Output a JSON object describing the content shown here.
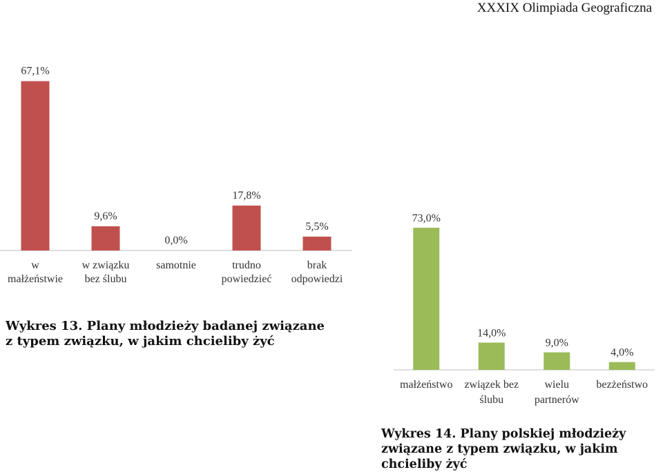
{
  "header": {
    "title": "XXXIX Olimpiada Geograficzna"
  },
  "captions": {
    "chart1": "Wykres 13. Plany młodzieży badanej związane z typem związku, w jakim chcieliby żyć",
    "chart2": "Wykres 14. Plany polskiej młodzieży związane z typem związku, w jakim chcieliby żyć"
  },
  "chart_data": [
    {
      "type": "bar",
      "title": "",
      "categories": [
        [
          "w",
          "małżeństwie"
        ],
        [
          "w związku",
          "bez ślubu"
        ],
        [
          "samotnie"
        ],
        [
          "trudno",
          "powiedzieć"
        ],
        [
          "brak",
          "odpowiedzi"
        ]
      ],
      "values": [
        67.1,
        9.6,
        0.0,
        17.8,
        5.5
      ],
      "value_labels": [
        "67,1%",
        "9,6%",
        "0,0%",
        "17,8%",
        "5,5%"
      ],
      "color": "#c0504d",
      "ylim": [
        0,
        70
      ],
      "grid": false,
      "legend": "none"
    },
    {
      "type": "bar",
      "title": "",
      "categories": [
        [
          "małżeństwo"
        ],
        [
          "związek bez",
          "ślubu"
        ],
        [
          "wielu",
          "partnerów"
        ],
        [
          "bezżeństwo"
        ]
      ],
      "values": [
        73.0,
        14.0,
        9.0,
        4.0
      ],
      "value_labels": [
        "73,0%",
        "14,0%",
        "9,0%",
        "4,0%"
      ],
      "color": "#9bbb59",
      "ylim": [
        0,
        73
      ],
      "grid": false,
      "legend": "none"
    }
  ]
}
